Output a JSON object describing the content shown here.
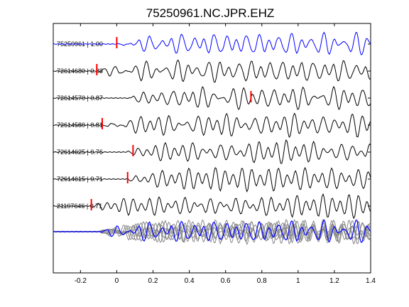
{
  "chart_data": {
    "type": "line",
    "title": "75250961.NC.JPR.EHZ",
    "xlabel": "",
    "ylabel": "",
    "xlim": [
      -0.35,
      1.4
    ],
    "xticks": [
      -0.2,
      0,
      0.2,
      0.4,
      0.6,
      0.8,
      1,
      1.2,
      1.4
    ],
    "xtick_labels": [
      "-0.2",
      "0",
      "0.2",
      "0.4",
      "0.6",
      "0.8",
      "1",
      "1.2",
      "1.4"
    ],
    "grid": false,
    "series": [
      {
        "name": "75250961 | 1.00",
        "color": "#0000ff",
        "pick_time": 0.0,
        "seed": 1
      },
      {
        "name": "72614680 | 0.88",
        "color": "#000000",
        "pick_time": -0.11,
        "seed": 2
      },
      {
        "name": "72614570 | 0.87",
        "color": "#000000",
        "pick_time": 0.74,
        "seed": 3
      },
      {
        "name": "72614580 | 0.81",
        "color": "#000000",
        "pick_time": -0.08,
        "seed": 4
      },
      {
        "name": "72614625 | 0.76",
        "color": "#000000",
        "pick_time": 0.09,
        "seed": 5
      },
      {
        "name": "72614615 | 0.71",
        "color": "#000000",
        "pick_time": 0.06,
        "seed": 6
      },
      {
        "name": "21107646 | 0.71",
        "color": "#000000",
        "pick_time": -0.14,
        "seed": 7
      }
    ],
    "overlay": {
      "colors": [
        "#888888",
        "#0000ff"
      ]
    },
    "pick_color": "#ff0000"
  }
}
